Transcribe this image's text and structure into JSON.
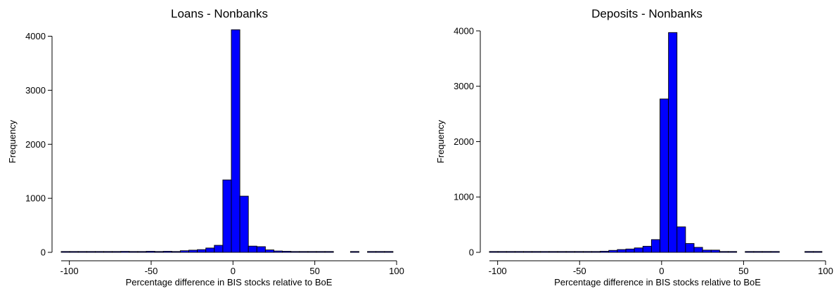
{
  "chart_data": [
    {
      "type": "bar",
      "title": "Loans - Nonbanks",
      "xlabel": "Percentage difference in BIS stocks relative to BoE",
      "ylabel": "Frequency",
      "xlim": [
        -105,
        100
      ],
      "ylim": [
        0,
        4150
      ],
      "xticks": [
        -100,
        -50,
        0,
        50,
        100
      ],
      "yticks": [
        0,
        1000,
        2000,
        3000,
        4000
      ],
      "bin_width": 5.2,
      "bar_color": "#0000ff",
      "bins": [
        {
          "x0": -105,
          "y": 5
        },
        {
          "x0": -99.8,
          "y": 5
        },
        {
          "x0": -94.6,
          "y": 5
        },
        {
          "x0": -89.4,
          "y": 8
        },
        {
          "x0": -84.2,
          "y": 10
        },
        {
          "x0": -79,
          "y": 6
        },
        {
          "x0": -73.8,
          "y": 10
        },
        {
          "x0": -68.6,
          "y": 18
        },
        {
          "x0": -63.4,
          "y": 8
        },
        {
          "x0": -58.2,
          "y": 12
        },
        {
          "x0": -53,
          "y": 20
        },
        {
          "x0": -47.8,
          "y": 15
        },
        {
          "x0": -42.6,
          "y": 20
        },
        {
          "x0": -37.4,
          "y": 15
        },
        {
          "x0": -32.2,
          "y": 30
        },
        {
          "x0": -27,
          "y": 40
        },
        {
          "x0": -21.8,
          "y": 50
        },
        {
          "x0": -16.6,
          "y": 80
        },
        {
          "x0": -11.4,
          "y": 130
        },
        {
          "x0": -6.2,
          "y": 1340
        },
        {
          "x0": -1,
          "y": 4120
        },
        {
          "x0": 4.2,
          "y": 1040
        },
        {
          "x0": 9.4,
          "y": 115
        },
        {
          "x0": 14.6,
          "y": 105
        },
        {
          "x0": 19.8,
          "y": 45
        },
        {
          "x0": 25,
          "y": 25
        },
        {
          "x0": 30.2,
          "y": 20
        },
        {
          "x0": 35.4,
          "y": 12
        },
        {
          "x0": 40.6,
          "y": 8
        },
        {
          "x0": 45.8,
          "y": 8
        },
        {
          "x0": 51,
          "y": 6
        },
        {
          "x0": 56.2,
          "y": 4
        },
        {
          "x0": 71.8,
          "y": 3
        },
        {
          "x0": 82.2,
          "y": 4
        },
        {
          "x0": 87.4,
          "y": 5
        },
        {
          "x0": 92.6,
          "y": 5
        }
      ]
    },
    {
      "type": "bar",
      "title": "Deposits - Nonbanks",
      "xlabel": "Percentage difference in BIS stocks relative to BoE",
      "ylabel": "Frequency",
      "xlim": [
        -105,
        100
      ],
      "ylim": [
        0,
        4050
      ],
      "xticks": [
        -100,
        -50,
        0,
        50,
        100
      ],
      "yticks": [
        0,
        1000,
        2000,
        3000,
        4000
      ],
      "bin_width": 5.2,
      "bar_color": "#0000ff",
      "bins": [
        {
          "x0": -105,
          "y": 5
        },
        {
          "x0": -99.8,
          "y": 5
        },
        {
          "x0": -94.6,
          "y": 5
        },
        {
          "x0": -89.4,
          "y": 5
        },
        {
          "x0": -84.2,
          "y": 5
        },
        {
          "x0": -79,
          "y": 8
        },
        {
          "x0": -73.8,
          "y": 8
        },
        {
          "x0": -68.6,
          "y": 8
        },
        {
          "x0": -63.4,
          "y": 8
        },
        {
          "x0": -58.2,
          "y": 10
        },
        {
          "x0": -53,
          "y": 15
        },
        {
          "x0": -47.8,
          "y": 12
        },
        {
          "x0": -42.6,
          "y": 15
        },
        {
          "x0": -37.4,
          "y": 20
        },
        {
          "x0": -32.2,
          "y": 35
        },
        {
          "x0": -27,
          "y": 50
        },
        {
          "x0": -21.8,
          "y": 60
        },
        {
          "x0": -16.6,
          "y": 80
        },
        {
          "x0": -11.4,
          "y": 110
        },
        {
          "x0": -6.2,
          "y": 230
        },
        {
          "x0": -1,
          "y": 2770
        },
        {
          "x0": 4.2,
          "y": 3970
        },
        {
          "x0": 9.4,
          "y": 460
        },
        {
          "x0": 14.6,
          "y": 160
        },
        {
          "x0": 19.8,
          "y": 90
        },
        {
          "x0": 25,
          "y": 40
        },
        {
          "x0": 30.2,
          "y": 40
        },
        {
          "x0": 35.4,
          "y": 15
        },
        {
          "x0": 40.6,
          "y": 8
        },
        {
          "x0": 51,
          "y": 5
        },
        {
          "x0": 56.2,
          "y": 5
        },
        {
          "x0": 61.4,
          "y": 5
        },
        {
          "x0": 66.6,
          "y": 5
        },
        {
          "x0": 87.4,
          "y": 5
        },
        {
          "x0": 92.6,
          "y": 8
        }
      ]
    }
  ]
}
